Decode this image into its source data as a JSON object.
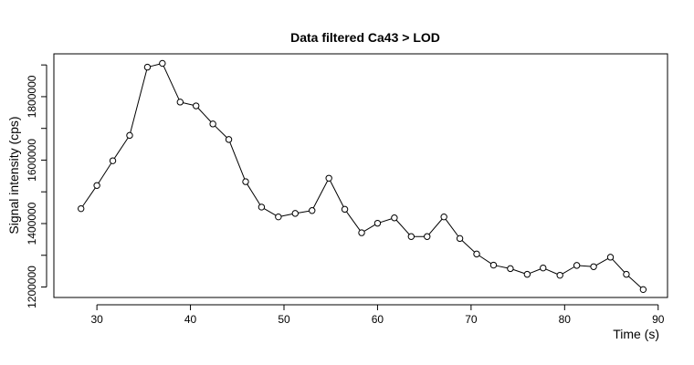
{
  "chart_data": {
    "type": "line",
    "title": "Data filtered Ca43 > LOD",
    "xlabel": "Time (s)",
    "ylabel": "Signal intensity (cps)",
    "xlim": [
      25.4,
      91.0
    ],
    "ylim": [
      1167000,
      1935000
    ],
    "x_ticks": [
      30,
      40,
      50,
      60,
      70,
      80,
      90
    ],
    "y_ticks": [
      1200000,
      1300000,
      1400000,
      1500000,
      1600000,
      1700000,
      1800000,
      1900000
    ],
    "y_tick_labels": [
      {
        "value": 1200000,
        "label": "1200000"
      },
      {
        "value": 1400000,
        "label": "1400000"
      },
      {
        "value": 1600000,
        "label": "1600000"
      },
      {
        "value": 1800000,
        "label": "1800000"
      }
    ],
    "marker": "open-circle",
    "line_color": "#000000",
    "series": [
      {
        "x": [
          28.3,
          30.0,
          31.7,
          33.5,
          35.4,
          37.0,
          38.9,
          40.6,
          42.4,
          44.1,
          45.9,
          47.6,
          49.4,
          51.2,
          53.0,
          54.8,
          56.5,
          58.3,
          60.0,
          61.8,
          63.6,
          65.3,
          67.1,
          68.8,
          70.6,
          72.4,
          74.2,
          76.0,
          77.7,
          79.5,
          81.3,
          83.1,
          84.9,
          86.6,
          88.4
        ],
        "y": [
          1447000,
          1520000,
          1598000,
          1678000,
          1893000,
          1905000,
          1783000,
          1771000,
          1714000,
          1665000,
          1532000,
          1452000,
          1421000,
          1432000,
          1441000,
          1543000,
          1445000,
          1371000,
          1401000,
          1418000,
          1359000,
          1359000,
          1421000,
          1353000,
          1304000,
          1269000,
          1258000,
          1240000,
          1260000,
          1237000,
          1268000,
          1264000,
          1294000,
          1240000,
          1192000
        ]
      }
    ]
  }
}
